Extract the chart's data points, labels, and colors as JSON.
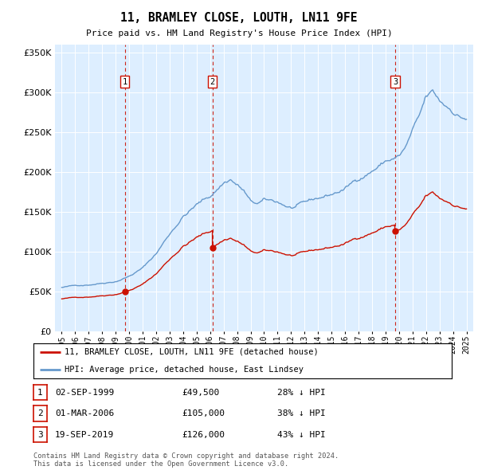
{
  "title": "11, BRAMLEY CLOSE, LOUTH, LN11 9FE",
  "subtitle": "Price paid vs. HM Land Registry's House Price Index (HPI)",
  "red_line_label": "11, BRAMLEY CLOSE, LOUTH, LN11 9FE (detached house)",
  "blue_line_label": "HPI: Average price, detached house, East Lindsey",
  "sales": [
    {
      "number": 1,
      "date": "02-SEP-1999",
      "price": 49500,
      "hpi_pct": "28% ↓ HPI",
      "x": 1999.67
    },
    {
      "number": 2,
      "date": "01-MAR-2006",
      "price": 105000,
      "hpi_pct": "38% ↓ HPI",
      "x": 2006.17
    },
    {
      "number": 3,
      "date": "19-SEP-2019",
      "price": 126000,
      "hpi_pct": "43% ↓ HPI",
      "x": 2019.72
    }
  ],
  "footer": "Contains HM Land Registry data © Crown copyright and database right 2024.\nThis data is licensed under the Open Government Licence v3.0.",
  "ylim": [
    0,
    360000
  ],
  "xlim": [
    1994.5,
    2025.5
  ],
  "bg_color": "#ddeeff",
  "red_color": "#cc1100",
  "blue_color": "#6699cc",
  "grid_color": "#ffffff",
  "box_edge_color": "#cc1100"
}
